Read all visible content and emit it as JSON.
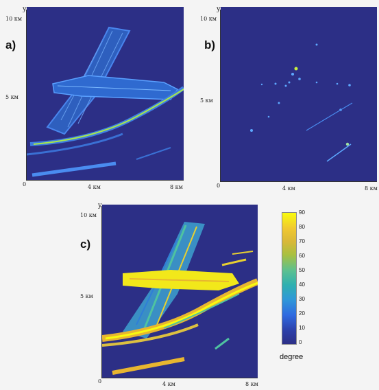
{
  "panels": [
    {
      "label": "a)",
      "y_axis": "y",
      "y_top": "10 км",
      "y_mid": "5 км",
      "x_zero": "0",
      "x_mid": "4 км",
      "x_right": "8 км"
    },
    {
      "label": "b)",
      "y_axis": "y",
      "y_top": "10 км",
      "y_mid": "5 км",
      "x_zero": "0",
      "x_mid": "4 км",
      "x_right": "8 км"
    },
    {
      "label": "c)",
      "y_axis": "y",
      "y_top": "10 км",
      "y_mid": "5 км",
      "x_zero": "0",
      "x_mid": "4 км",
      "x_right": "8 км"
    }
  ],
  "colorbar": {
    "title": "degree",
    "ticks": [
      "90",
      "80",
      "70",
      "60",
      "50",
      "40",
      "30",
      "20",
      "10",
      "0"
    ],
    "colors": {
      "high": "#f9fb0e",
      "upper": "#e8b630",
      "mid": "#3fbc9d",
      "lower": "#2f7ed8",
      "low": "#2c2f86"
    }
  },
  "colors": {
    "background": "#2c2f86",
    "bright": "#4fa3ff",
    "accent": "#c8f040"
  }
}
